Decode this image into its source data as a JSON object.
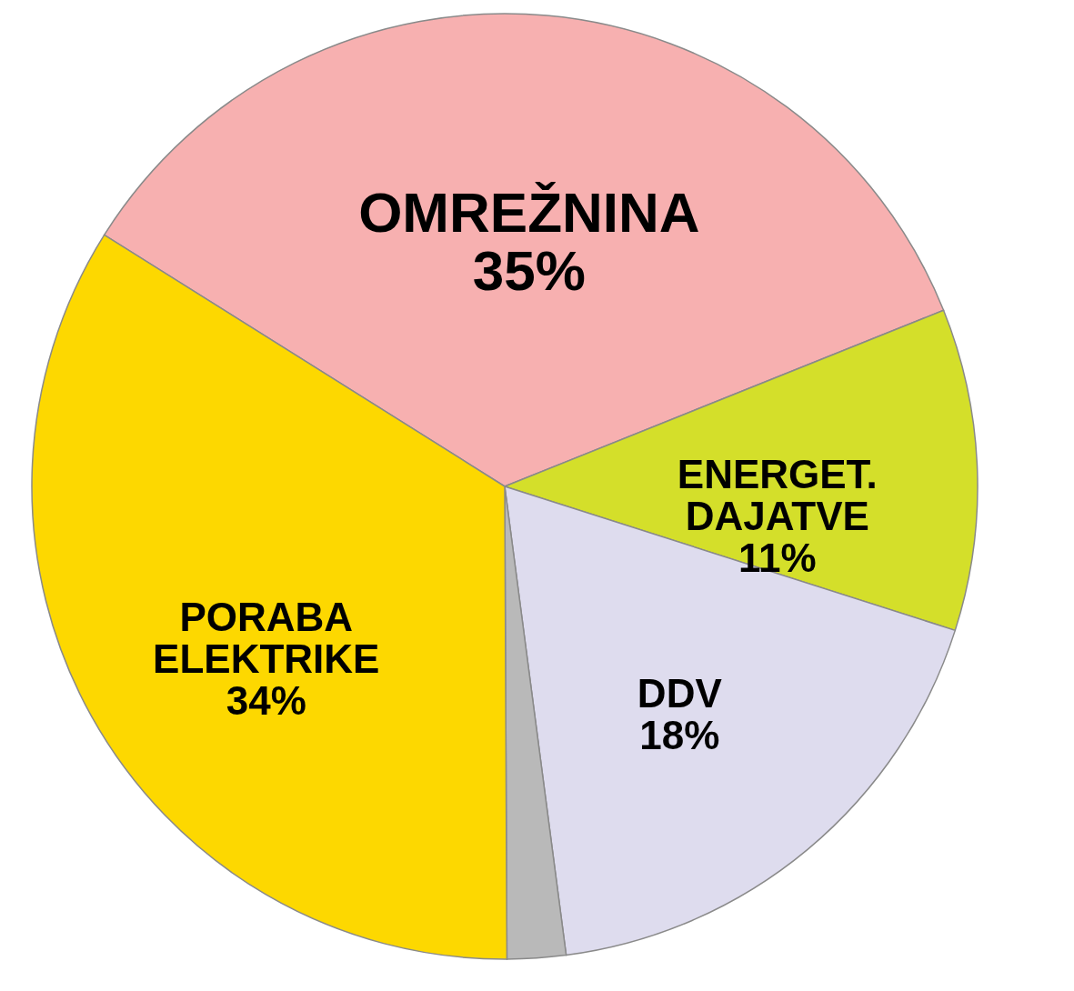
{
  "chart_data": {
    "type": "pie",
    "categories": [
      "OMREŽNINA",
      "ENERGET. DAJATVE",
      "DDV",
      null,
      "PORABA ELEKTRIKE"
    ],
    "values": [
      35,
      11,
      18,
      2,
      34
    ],
    "value_labels": [
      "35%",
      "11%",
      "18%",
      null,
      "34%"
    ],
    "colors": [
      "#f7b0b0",
      "#d4df2a",
      "#dedcee",
      "#b9b9b9",
      "#fdd800"
    ],
    "legend": false
  }
}
